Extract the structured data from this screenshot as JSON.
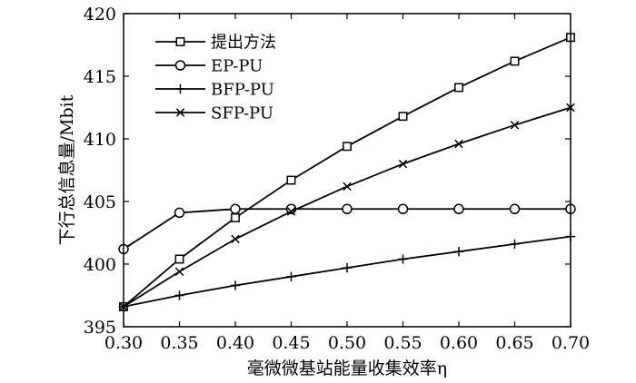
{
  "chart_data": {
    "type": "line",
    "xlabel": "毫微微基站能量收集效率η",
    "ylabel": "下行总信息量/Mbit",
    "xlim": [
      0.3,
      0.7
    ],
    "ylim": [
      395,
      420
    ],
    "xticks": [
      "0.30",
      "0.35",
      "0.40",
      "0.45",
      "0.50",
      "0.55",
      "0.60",
      "0.65",
      "0.70"
    ],
    "yticks": [
      "395",
      "400",
      "405",
      "410",
      "415",
      "420"
    ],
    "grid": false,
    "legend_position": "top-left",
    "x": [
      0.3,
      0.35,
      0.4,
      0.45,
      0.5,
      0.55,
      0.6,
      0.65,
      0.7
    ],
    "series": [
      {
        "name": "提出方法",
        "marker": "square",
        "values": [
          396.6,
          400.4,
          403.7,
          406.7,
          409.4,
          411.8,
          414.1,
          416.2,
          418.1
        ]
      },
      {
        "name": "EP-PU",
        "marker": "circle",
        "values": [
          401.2,
          404.1,
          404.4,
          404.4,
          404.4,
          404.4,
          404.4,
          404.4,
          404.4
        ]
      },
      {
        "name": "BFP-PU",
        "marker": "plus",
        "values": [
          396.6,
          397.5,
          398.3,
          399.0,
          399.7,
          400.4,
          401.0,
          401.6,
          402.2
        ]
      },
      {
        "name": "SFP-PU",
        "marker": "cross",
        "values": [
          396.6,
          399.4,
          402.0,
          404.2,
          406.2,
          408.0,
          409.6,
          411.1,
          412.5
        ]
      }
    ]
  }
}
